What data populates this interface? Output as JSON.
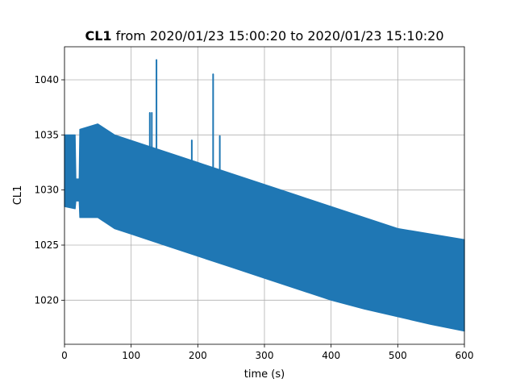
{
  "chart_data": {
    "type": "line",
    "title_bold": "CL1",
    "title_rest": " from 2020/01/23 15:00:20 to 2020/01/23 15:10:20",
    "xlabel": "time (s)",
    "ylabel": "CL1",
    "xlim": [
      0,
      600
    ],
    "ylim": [
      1016,
      1043
    ],
    "xticks": [
      0,
      100,
      200,
      300,
      400,
      500,
      600
    ],
    "yticks": [
      1020,
      1025,
      1030,
      1035,
      1040
    ],
    "grid": true,
    "series": [
      {
        "color": "#1f77b4",
        "envelope": [
          {
            "x": 0,
            "min": 1028.5,
            "max": 1035.0
          },
          {
            "x": 16,
            "min": 1028.3,
            "max": 1035.0
          },
          {
            "x": 17,
            "min": 1029.0,
            "max": 1031.0
          },
          {
            "x": 22,
            "min": 1029.0,
            "max": 1031.0
          },
          {
            "x": 23,
            "min": 1027.5,
            "max": 1035.5
          },
          {
            "x": 50,
            "min": 1027.5,
            "max": 1036.0
          },
          {
            "x": 75,
            "min": 1026.5,
            "max": 1035.0
          },
          {
            "x": 100,
            "min": 1026.0,
            "max": 1034.5
          },
          {
            "x": 150,
            "min": 1025.0,
            "max": 1033.5
          },
          {
            "x": 200,
            "min": 1024.0,
            "max": 1032.5
          },
          {
            "x": 250,
            "min": 1023.0,
            "max": 1031.5
          },
          {
            "x": 300,
            "min": 1022.0,
            "max": 1030.5
          },
          {
            "x": 350,
            "min": 1021.0,
            "max": 1029.5
          },
          {
            "x": 400,
            "min": 1020.0,
            "max": 1028.5
          },
          {
            "x": 450,
            "min": 1019.2,
            "max": 1027.5
          },
          {
            "x": 500,
            "min": 1018.5,
            "max": 1026.5
          },
          {
            "x": 550,
            "min": 1017.8,
            "max": 1026.0
          },
          {
            "x": 600,
            "min": 1017.2,
            "max": 1025.5
          }
        ],
        "spikes": [
          {
            "x": 128,
            "y": 1037.0
          },
          {
            "x": 131,
            "y": 1037.0
          },
          {
            "x": 138,
            "y": 1041.8
          },
          {
            "x": 191,
            "y": 1034.5
          },
          {
            "x": 223,
            "y": 1040.5
          },
          {
            "x": 233,
            "y": 1034.9
          }
        ]
      }
    ]
  }
}
